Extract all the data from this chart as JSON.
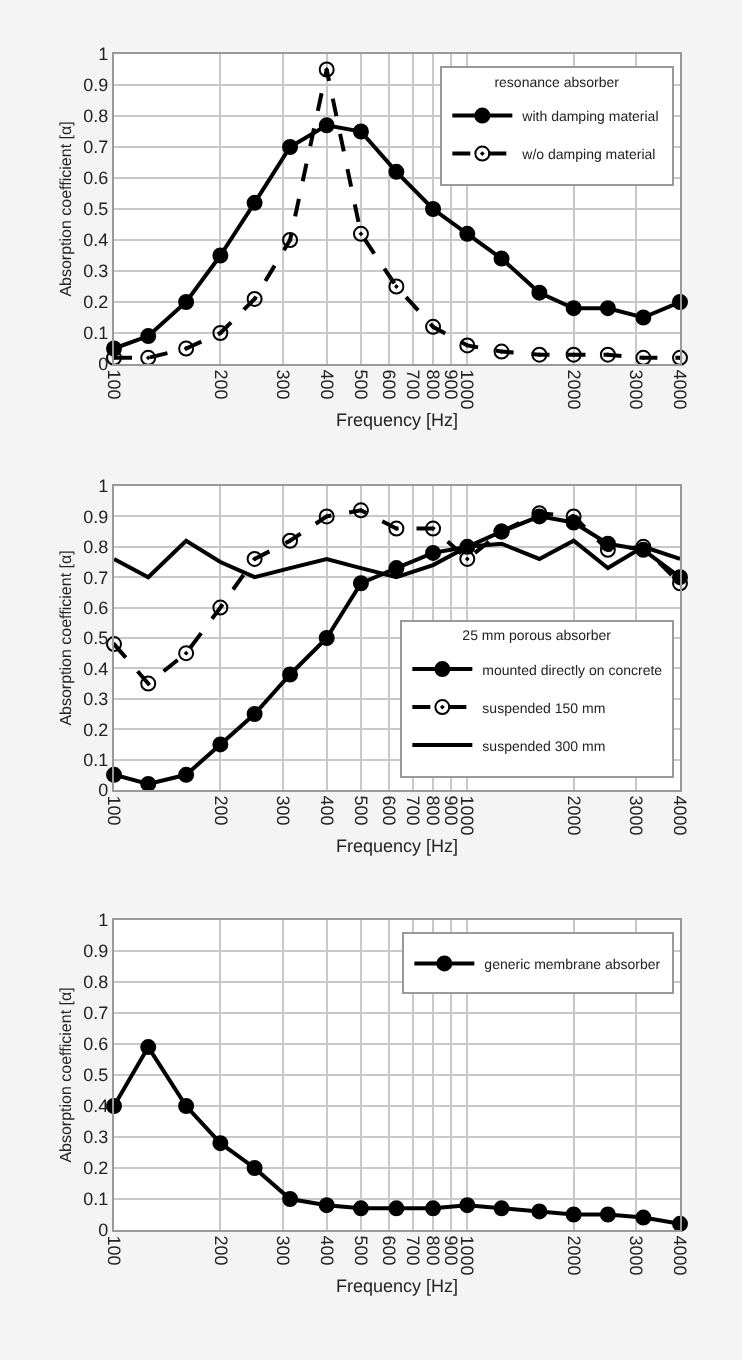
{
  "chart_data": [
    {
      "type": "line",
      "xlabel": "Frequency [Hz]",
      "ylabel": "Absorption coefficient [α]",
      "legend_title": "resonance absorber",
      "legend": "top right",
      "grid": true,
      "log": "x",
      "x": [
        100,
        125,
        160,
        200,
        250,
        315,
        400,
        500,
        630,
        800,
        1000,
        1250,
        1600,
        2000,
        2500,
        3150,
        4000
      ],
      "xlim": [
        100,
        4000
      ],
      "xticks": [
        100,
        200,
        300,
        400,
        500,
        600,
        700,
        800,
        900,
        1000,
        2000,
        3000,
        4000
      ],
      "ylim": [
        0,
        1
      ],
      "yticks": [
        0,
        0.1,
        0.2,
        0.3,
        0.4,
        0.5,
        0.6,
        0.7,
        0.8,
        0.9,
        1
      ],
      "series": [
        {
          "name": "with damping material",
          "color": "#000000",
          "marker": "circle",
          "line_style": "solid",
          "values": [
            0.05,
            0.09,
            0.2,
            0.35,
            0.52,
            0.7,
            0.77,
            0.75,
            0.62,
            0.5,
            0.42,
            0.34,
            0.23,
            0.18,
            0.18,
            0.15,
            0.2
          ]
        },
        {
          "name": "w/o damping material",
          "color": "#000000",
          "marker": "circle",
          "line_style": "dashed",
          "values": [
            0.02,
            0.02,
            0.05,
            0.1,
            0.21,
            0.4,
            0.95,
            0.42,
            0.25,
            0.12,
            0.06,
            0.04,
            0.03,
            0.03,
            0.03,
            0.02,
            0.02
          ]
        }
      ]
    },
    {
      "type": "line",
      "xlabel": "Frequency [Hz]",
      "ylabel": "Absorption coefficient [α]",
      "legend_title": "25 mm porous absorber",
      "legend": "bottom right",
      "grid": true,
      "log": "x",
      "x": [
        100,
        125,
        160,
        200,
        250,
        315,
        400,
        500,
        630,
        800,
        1000,
        1250,
        1600,
        2000,
        2500,
        3150,
        4000
      ],
      "xlim": [
        100,
        4000
      ],
      "xticks": [
        100,
        200,
        300,
        400,
        500,
        600,
        700,
        800,
        900,
        1000,
        2000,
        3000,
        4000
      ],
      "ylim": [
        0,
        1
      ],
      "yticks": [
        0,
        0.1,
        0.2,
        0.3,
        0.4,
        0.5,
        0.6,
        0.7,
        0.8,
        0.9,
        1
      ],
      "series": [
        {
          "name": "mounted directly on concrete",
          "color": "#000000",
          "marker": "circle",
          "line_style": "solid",
          "values": [
            0.05,
            0.02,
            0.05,
            0.15,
            0.25,
            0.38,
            0.5,
            0.68,
            0.73,
            0.78,
            0.8,
            0.85,
            0.9,
            0.88,
            0.81,
            0.79,
            0.7
          ]
        },
        {
          "name": "suspended 150 mm",
          "color": "#000000",
          "marker": "circle",
          "line_style": "dashed",
          "values": [
            0.48,
            0.35,
            0.45,
            0.6,
            0.76,
            0.82,
            0.9,
            0.92,
            0.86,
            0.86,
            0.76,
            0.85,
            0.91,
            0.9,
            0.79,
            0.8,
            0.68
          ]
        },
        {
          "name": "suspended 300 mm",
          "color": "#000000",
          "marker": "none",
          "line_style": "solid",
          "values": [
            0.76,
            0.7,
            0.82,
            0.75,
            0.7,
            0.73,
            0.76,
            0.73,
            0.7,
            0.74,
            0.8,
            0.81,
            0.76,
            0.82,
            0.73,
            0.8,
            0.76
          ]
        }
      ]
    },
    {
      "type": "line",
      "xlabel": "Frequency [Hz]",
      "ylabel": "Absorption coefficient [α]",
      "legend": "top right",
      "grid": true,
      "log": "x",
      "x": [
        100,
        125,
        160,
        200,
        250,
        315,
        400,
        500,
        630,
        800,
        1000,
        1250,
        1600,
        2000,
        2500,
        3150,
        4000
      ],
      "xlim": [
        100,
        4000
      ],
      "xticks": [
        100,
        200,
        300,
        400,
        500,
        600,
        700,
        800,
        900,
        1000,
        2000,
        3000,
        4000
      ],
      "ylim": [
        0,
        1
      ],
      "yticks": [
        0,
        0.1,
        0.2,
        0.3,
        0.4,
        0.5,
        0.6,
        0.7,
        0.8,
        0.9,
        1
      ],
      "series": [
        {
          "name": "generic membrane absorber",
          "color": "#000000",
          "marker": "circle",
          "line_style": "solid",
          "values": [
            0.4,
            0.59,
            0.4,
            0.28,
            0.2,
            0.1,
            0.08,
            0.07,
            0.07,
            0.07,
            0.08,
            0.07,
            0.06,
            0.05,
            0.05,
            0.04,
            0.02
          ]
        }
      ]
    }
  ]
}
